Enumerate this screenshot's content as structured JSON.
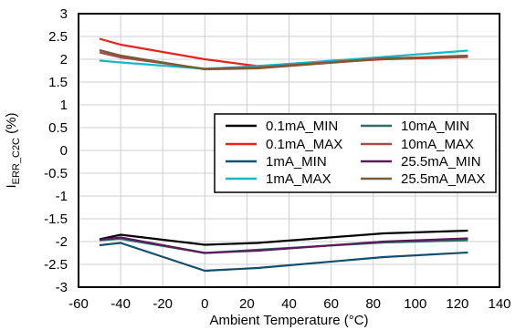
{
  "chart_data": {
    "type": "line",
    "title": "",
    "xlabel": "Ambient Temperature (°C)",
    "ylabel": {
      "main": "I",
      "sub": "ERR_C2C",
      "unit": " (%)"
    },
    "xlim": [
      -60,
      140
    ],
    "ylim": [
      -3,
      3
    ],
    "xticks": [
      -60,
      -40,
      -20,
      0,
      20,
      40,
      60,
      80,
      100,
      120,
      140
    ],
    "yticks": [
      -3,
      -2.5,
      -2,
      -1.5,
      -1,
      -0.5,
      0,
      0.5,
      1,
      1.5,
      2,
      2.5,
      3
    ],
    "xtick_labels": [
      "-60",
      "-40",
      "-20",
      "0",
      "20",
      "40",
      "60",
      "80",
      "100",
      "120",
      "140"
    ],
    "ytick_labels": [
      "-3",
      "-2.5",
      "-2",
      "-1.5",
      "-1",
      "-0.5",
      "0",
      "0.5",
      "1",
      "1.5",
      "2",
      "2.5",
      "3"
    ],
    "grid": true,
    "legend_position": "center-right",
    "x": [
      -50,
      -40,
      0,
      25,
      85,
      125
    ],
    "series": [
      {
        "name": "0.1mA_MIN",
        "color": "#000000",
        "values": [
          -1.95,
          -1.85,
          -2.07,
          -2.03,
          -1.82,
          -1.76
        ]
      },
      {
        "name": "0.1mA_MAX",
        "color": "#e8231f",
        "values": [
          2.45,
          2.32,
          2.0,
          1.85,
          2.0,
          2.05
        ]
      },
      {
        "name": "1mA_MIN",
        "color": "#124e6e",
        "values": [
          -2.08,
          -2.03,
          -2.64,
          -2.58,
          -2.34,
          -2.24
        ]
      },
      {
        "name": "1mA_MAX",
        "color": "#19b5c8",
        "values": [
          1.97,
          1.93,
          1.79,
          1.85,
          2.05,
          2.19
        ]
      },
      {
        "name": "10mA_MIN",
        "color": "#2a6e64",
        "values": [
          -1.97,
          -1.94,
          -2.25,
          -2.18,
          -2.02,
          -1.97
        ]
      },
      {
        "name": "10mA_MAX",
        "color": "#a84b4b",
        "values": [
          2.15,
          2.04,
          1.79,
          1.82,
          2.02,
          2.06
        ]
      },
      {
        "name": "25.5mA_MIN",
        "color": "#5a1a5c",
        "values": [
          -1.96,
          -1.91,
          -2.25,
          -2.2,
          -2.0,
          -1.93
        ]
      },
      {
        "name": "25.5mA_MAX",
        "color": "#7b5a34",
        "values": [
          2.2,
          2.08,
          1.78,
          1.8,
          2.01,
          2.08
        ]
      }
    ]
  }
}
